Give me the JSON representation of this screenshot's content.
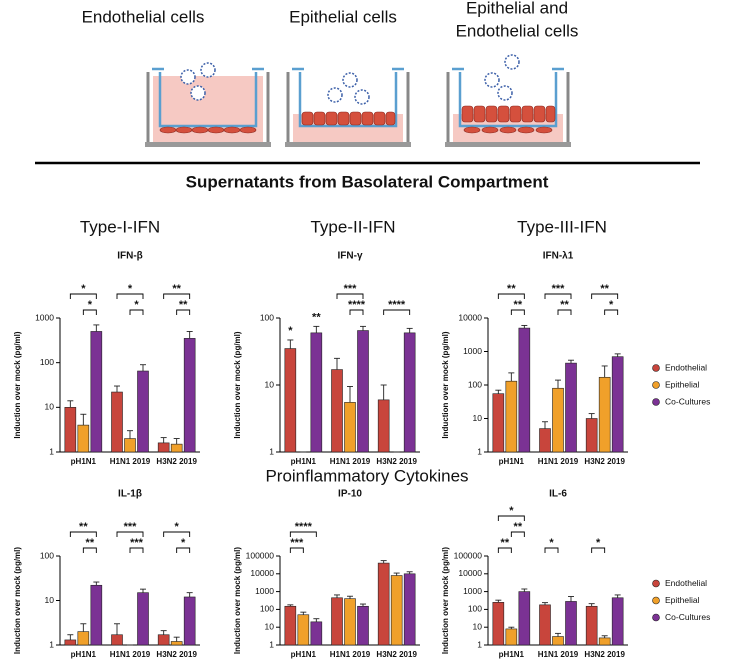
{
  "figure": {
    "cell_labels": [
      {
        "lines": [
          "Endothelial cells"
        ],
        "color": "#c8453c"
      },
      {
        "lines": [
          "Epithelial cells"
        ],
        "color": "#e8961e"
      },
      {
        "lines": [
          "Epithelial and",
          "Endothelial cells"
        ],
        "color": "#7a2f8f"
      }
    ],
    "section_title": "Supernatants from Basolateral Compartment",
    "column_titles": [
      "Type-I-IFN",
      "Type-II-IFN",
      "Type-III-IFN"
    ],
    "row_title": "Proinflammatory Cytokines"
  },
  "chart_data": [
    {
      "type": "bar",
      "title": "IFN-β",
      "y_label": "Induction over mock (pg/ml)",
      "log_scale": true,
      "ylim": [
        1,
        1000
      ],
      "yticks": [
        1,
        10,
        100,
        1000
      ],
      "categories": [
        "pH1N1",
        "H1N1 2019",
        "H3N2 2019"
      ],
      "series": [
        {
          "color": "#c8453c",
          "values": [
            10,
            22,
            1.6
          ],
          "errors": [
            4,
            8,
            0.5
          ]
        },
        {
          "color": "#f0a02a",
          "values": [
            4,
            2,
            1.5
          ],
          "errors": [
            3,
            1,
            0.5
          ]
        },
        {
          "color": "#7b3294",
          "values": [
            500,
            65,
            350
          ],
          "errors": [
            200,
            25,
            150
          ]
        }
      ],
      "annotations": [
        {
          "category": 0,
          "from": 1,
          "to": 2,
          "label": "*"
        },
        {
          "category": 0,
          "from": 0,
          "to": 2,
          "label": "*"
        },
        {
          "category": 1,
          "from": 1,
          "to": 2,
          "label": "*"
        },
        {
          "category": 1,
          "from": 0,
          "to": 2,
          "label": "*"
        },
        {
          "category": 2,
          "from": 1,
          "to": 2,
          "label": "**"
        },
        {
          "category": 2,
          "from": 0,
          "to": 2,
          "label": "**"
        }
      ]
    },
    {
      "type": "bar",
      "title": "IFN-γ",
      "y_label": "Induction over mock (pg/ml)",
      "log_scale": true,
      "ylim": [
        1,
        100
      ],
      "yticks": [
        1,
        10,
        100
      ],
      "categories": [
        "pH1N1",
        "H1N1 2019",
        "H3N2 2019"
      ],
      "series": [
        {
          "color": "#c8453c",
          "values": [
            35,
            17,
            6
          ],
          "errors": [
            12,
            8,
            4
          ]
        },
        {
          "color": "#f0a02a",
          "values": [
            1,
            5.5,
            1
          ],
          "errors": [
            0,
            4,
            0
          ]
        },
        {
          "color": "#7b3294",
          "values": [
            60,
            65,
            60
          ],
          "errors": [
            15,
            10,
            10
          ]
        }
      ],
      "annotations": [
        {
          "category": 0,
          "series": 0,
          "label": "*"
        },
        {
          "category": 0,
          "series": 2,
          "label": "**"
        },
        {
          "category": 1,
          "from": 1,
          "to": 2,
          "label": "****"
        },
        {
          "category": 1,
          "from": 0,
          "to": 2,
          "label": "***"
        },
        {
          "category": 2,
          "from": 0,
          "to": 2,
          "label": "****"
        }
      ]
    },
    {
      "type": "bar",
      "title": "IFN-λ1",
      "y_label": "Induction over mock (pg/ml)",
      "log_scale": true,
      "ylim": [
        1,
        10000
      ],
      "yticks": [
        1,
        10,
        100,
        1000,
        10000
      ],
      "legend": "right",
      "categories": [
        "pH1N1",
        "H1N1 2019",
        "H3N2 2019"
      ],
      "series": [
        {
          "name": "Endothelial",
          "color": "#c8453c",
          "values": [
            55,
            5,
            10
          ],
          "errors": [
            15,
            3,
            4
          ]
        },
        {
          "name": "Epithelial",
          "color": "#f0a02a",
          "values": [
            130,
            80,
            170
          ],
          "errors": [
            100,
            60,
            200
          ]
        },
        {
          "name": "Co-Cultures",
          "color": "#7b3294",
          "values": [
            5000,
            450,
            700
          ],
          "errors": [
            1000,
            100,
            150
          ]
        }
      ],
      "annotations": [
        {
          "category": 0,
          "from": 1,
          "to": 2,
          "label": "**"
        },
        {
          "category": 0,
          "from": 0,
          "to": 2,
          "label": "**"
        },
        {
          "category": 1,
          "from": 1,
          "to": 2,
          "label": "**"
        },
        {
          "category": 1,
          "from": 0,
          "to": 2,
          "label": "***"
        },
        {
          "category": 2,
          "from": 1,
          "to": 2,
          "label": "*"
        },
        {
          "category": 2,
          "from": 0,
          "to": 2,
          "label": "**"
        }
      ]
    },
    {
      "type": "bar",
      "title": "IL-1β",
      "y_label": "Induction over mock (pg/ml)",
      "log_scale": true,
      "ylim": [
        1,
        100
      ],
      "yticks": [
        1,
        10,
        100
      ],
      "categories": [
        "pH1N1",
        "H1N1 2019",
        "H3N2 2019"
      ],
      "series": [
        {
          "color": "#c8453c",
          "values": [
            1.3,
            1.7,
            1.7
          ],
          "errors": [
            0.4,
            1.3,
            0.4
          ]
        },
        {
          "color": "#f0a02a",
          "values": [
            2,
            1,
            1.2
          ],
          "errors": [
            1,
            0,
            0.3
          ]
        },
        {
          "color": "#7b3294",
          "values": [
            22,
            15,
            12
          ],
          "errors": [
            4,
            3,
            3
          ]
        }
      ],
      "annotations": [
        {
          "category": 0,
          "from": 1,
          "to": 2,
          "label": "**"
        },
        {
          "category": 0,
          "from": 0,
          "to": 2,
          "label": "**"
        },
        {
          "category": 1,
          "from": 1,
          "to": 2,
          "label": "***"
        },
        {
          "category": 1,
          "from": 0,
          "to": 2,
          "label": "***"
        },
        {
          "category": 2,
          "from": 1,
          "to": 2,
          "label": "*"
        },
        {
          "category": 2,
          "from": 0,
          "to": 2,
          "label": "*"
        }
      ]
    },
    {
      "type": "bar",
      "title": "IP-10",
      "y_label": "Induction over mock (pg/ml)",
      "log_scale": true,
      "ylim": [
        1,
        100000
      ],
      "yticks": [
        1,
        10,
        100,
        1000,
        10000,
        100000
      ],
      "categories": [
        "pH1N1",
        "H1N1 2019",
        "H3N2 2019"
      ],
      "series": [
        {
          "color": "#c8453c",
          "values": [
            150,
            450,
            40000
          ],
          "errors": [
            30,
            200,
            15000
          ]
        },
        {
          "color": "#f0a02a",
          "values": [
            50,
            400,
            8000
          ],
          "errors": [
            20,
            150,
            3000
          ]
        },
        {
          "color": "#7b3294",
          "values": [
            20,
            150,
            10000
          ],
          "errors": [
            10,
            50,
            3000
          ]
        }
      ],
      "annotations": [
        {
          "category": 0,
          "from": 0,
          "to": 1,
          "label": "***"
        },
        {
          "category": 0,
          "from": 0,
          "to": 2,
          "label": "****"
        }
      ]
    },
    {
      "type": "bar",
      "title": "IL-6",
      "y_label": "Induction over mock (pg/ml)",
      "log_scale": true,
      "ylim": [
        1,
        100000
      ],
      "yticks": [
        1,
        10,
        100,
        1000,
        10000,
        100000
      ],
      "legend": "right",
      "categories": [
        "pH1N1",
        "H1N1 2019",
        "H3N2 2019"
      ],
      "series": [
        {
          "name": "Endothelial",
          "color": "#c8453c",
          "values": [
            250,
            180,
            150
          ],
          "errors": [
            80,
            60,
            60
          ]
        },
        {
          "name": "Epithelial",
          "color": "#f0a02a",
          "values": [
            8,
            3,
            2.5
          ],
          "errors": [
            2,
            1.5,
            0.8
          ]
        },
        {
          "name": "Co-Cultures",
          "color": "#7b3294",
          "values": [
            1000,
            280,
            450
          ],
          "errors": [
            400,
            250,
            200
          ]
        }
      ],
      "annotations": [
        {
          "category": 0,
          "from": 0,
          "to": 1,
          "label": "**"
        },
        {
          "category": 0,
          "from": 1,
          "to": 2,
          "label": "**"
        },
        {
          "category": 0,
          "from": 0,
          "to": 2,
          "label": "*"
        },
        {
          "category": 1,
          "from": 0,
          "to": 1,
          "label": "*"
        },
        {
          "category": 2,
          "from": 0,
          "to": 1,
          "label": "*"
        }
      ]
    }
  ]
}
